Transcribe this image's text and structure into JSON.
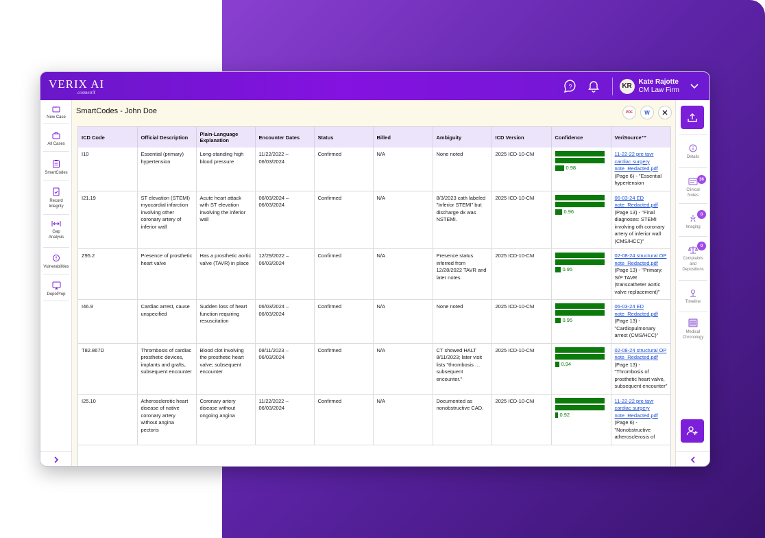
{
  "app": {
    "logo_text": "VERIX AI",
    "logo_sub": "cosmetrX"
  },
  "header": {
    "user_initials": "KR",
    "user_name": "Kate Rajotte",
    "user_org": "CM Law Firm"
  },
  "left_nav": {
    "items": [
      {
        "label": "New Case"
      },
      {
        "label": "All Cases"
      },
      {
        "label": "SmartCodes"
      },
      {
        "label": "Record Integrity"
      },
      {
        "label": "Gap Analysis"
      },
      {
        "label": "Vulnerabilities"
      },
      {
        "label": "DepoPrep"
      }
    ]
  },
  "main": {
    "title": "SmartCodes - John Doe",
    "pdf_label": "PDF",
    "word_label": "W"
  },
  "table": {
    "headers": [
      "ICD Code",
      "Official Description",
      "Plain-Language Explanation",
      "Encounter Dates",
      "Status",
      "Billed",
      "Ambiguity",
      "ICD Version",
      "Confidence",
      "VeriSource™"
    ],
    "rows": [
      {
        "code": "I10",
        "official": "Essential (primary) hypertension",
        "plain": "Long-standing high blood pressure",
        "dates": "11/22/2022 – 06/03/2024",
        "status": "Confirmed",
        "billed": "N/A",
        "ambiguity": "None noted",
        "version": "2025 ICD-10-CM",
        "confidence": 0.98,
        "confidence_label": "0.98",
        "source_link": "11-22-22 pre tavr cardiac surgery note_Redacted.pdf",
        "source_text": "(Page 6) - \"Essential hypertension"
      },
      {
        "code": "I21.19",
        "official": "ST elevation (STEMI) myocardial infarction involving other coronary artery of inferior wall",
        "plain": "Acute heart attack with ST elevation involving the inferior wall",
        "dates": "06/03/2024 – 06/03/2024",
        "status": "Confirmed",
        "billed": "N/A",
        "ambiguity": "8/3/2023 cath labeled \"Inferior STEMI\" but discharge dx was NSTEMI.",
        "version": "2025 ICD-10-CM",
        "confidence": 0.96,
        "confidence_label": "0.96",
        "source_link": "06-03-24 ED note_Redacted.pdf",
        "source_text": "(Page 13) - \"Final diagnoses: STEMI involving oth coronary artery of inferior wall (CMS/HCC)\""
      },
      {
        "code": "Z95.2",
        "official": "Presence of prosthetic heart valve",
        "plain": "Has a prosthetic aortic valve (TAVR) in place",
        "dates": "12/29/2022 – 06/03/2024",
        "status": "Confirmed",
        "billed": "N/A",
        "ambiguity": "Presence status inferred from 12/28/2022 TAVR and later notes.",
        "version": "2025 ICD-10-CM",
        "confidence": 0.95,
        "confidence_label": "0.95",
        "source_link": "02-08-24 structural OP note_Redacted.pdf",
        "source_text": "(Page 13) - \"Primary: S/P TAVR (transcatheter aortic valve replacement)\""
      },
      {
        "code": "I46.9",
        "official": "Cardiac arrest, cause unspecified",
        "plain": "Sudden loss of heart function requiring resuscitation",
        "dates": "06/03/2024 – 06/03/2024",
        "status": "Confirmed",
        "billed": "N/A",
        "ambiguity": "None noted",
        "version": "2025 ICD-10-CM",
        "confidence": 0.95,
        "confidence_label": "0.95",
        "source_link": "06-03-24 ED note_Redacted.pdf",
        "source_text": "(Page 13) - \"Cardiopulmonary arrest (CMS/HCC)\""
      },
      {
        "code": "T82.867D",
        "official": "Thrombosis of cardiac prosthetic devices, implants and grafts, subsequent encounter",
        "plain": "Blood clot involving the prosthetic heart valve; subsequent encounter",
        "dates": "08/11/2023 – 06/03/2024",
        "status": "Confirmed",
        "billed": "N/A",
        "ambiguity": "CT showed HALT 8/11/2023; later visit lists \"thrombosis … subsequent encounter.\"",
        "version": "2025 ICD-10-CM",
        "confidence": 0.94,
        "confidence_label": "0.94",
        "source_link": "02-08-24 structural OP note_Redacted.pdf",
        "source_text": "(Page 13) - \"Thrombosis of prosthetic heart valve, subsequent encounter\""
      },
      {
        "code": "I25.10",
        "official": "Atherosclerotic heart disease of native coronary artery without angina pectoris",
        "plain": "Coronary artery disease without ongoing angina",
        "dates": "11/22/2022 – 06/03/2024",
        "status": "Confirmed",
        "billed": "N/A",
        "ambiguity": "Documented as nonobstructive CAD.",
        "version": "2025 ICD-10-CM",
        "confidence": 0.92,
        "confidence_label": "0.92",
        "source_link": "11-22-22 pre tavr cardiac surgery note_Redacted.pdf",
        "source_text": "(Page 6) - \"Nonobstructive atherosclerosis of"
      }
    ]
  },
  "right_nav": {
    "items": [
      {
        "label": "Details",
        "badge": ""
      },
      {
        "label": "Clinical Notes",
        "badge": "36"
      },
      {
        "label": "Imaging",
        "badge": "0"
      },
      {
        "label": "Complaints and Depositions",
        "badge": "0"
      },
      {
        "label": "Timeline",
        "badge": ""
      },
      {
        "label": "Medical Chronology",
        "badge": ""
      }
    ]
  },
  "colors": {
    "brand": "#7c1fd9",
    "confidence": "#0b7a0b",
    "link": "#1a4fd6",
    "header_bg": "#ece4fb"
  }
}
